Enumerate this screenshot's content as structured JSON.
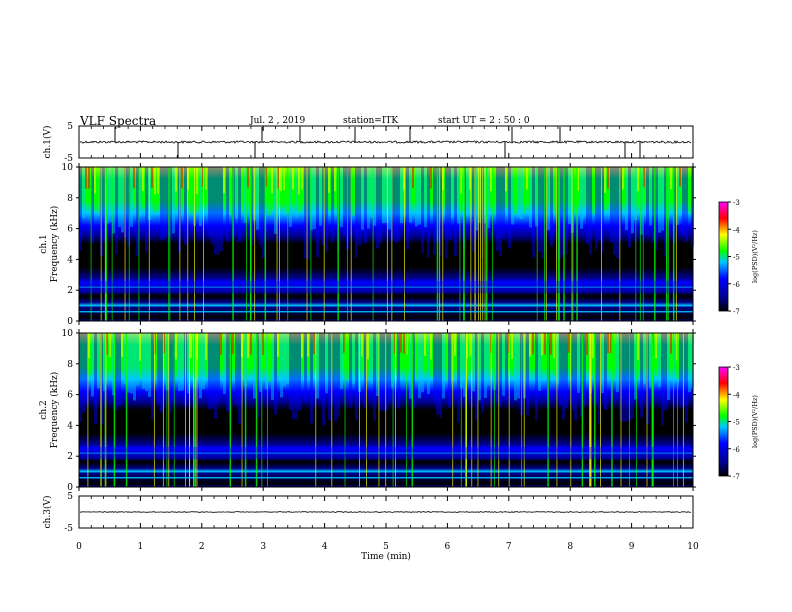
{
  "header": {
    "title": "VLF Spectra",
    "date": "Jul. 2 , 2019",
    "station": "station=ITK",
    "start": "start UT = 2 : 50 : 0"
  },
  "colors": {
    "black": "#000000",
    "navy": "#00008b",
    "blue": "#0000ff",
    "cyan": "#00c8ff",
    "green": "#00ff00",
    "yellow": "#ffff00",
    "red": "#ff0000",
    "magenta": "#ff00ff"
  },
  "chart_data": [
    {
      "type": "line",
      "panel": "ch1-waveform",
      "ylabel": "ch.1(V)",
      "ylim": [
        -5,
        5
      ],
      "yticks": [
        "5",
        "-5"
      ],
      "xlim": [
        0,
        10
      ],
      "series": [
        {
          "values_description_level": 0
        }
      ]
    },
    {
      "type": "heatmap",
      "panel": "ch1-spectrogram",
      "ylabel": "ch.1 Frequency (kHz)",
      "ylim": [
        0,
        10
      ],
      "yticks": [
        "0",
        "2",
        "4",
        "6",
        "8",
        "10"
      ],
      "xlim": [
        0,
        10
      ],
      "colorbar": {
        "label": "log(PSD)(V²/Hz)",
        "range": [
          -7,
          -3
        ],
        "ticks": [
          "-3",
          "-4",
          "-5",
          "-6",
          "-7"
        ]
      }
    },
    {
      "type": "heatmap",
      "panel": "ch2-spectrogram",
      "ylabel": "ch.2 Frequency (kHz)",
      "ylim": [
        0,
        10
      ],
      "yticks": [
        "0",
        "2",
        "4",
        "6",
        "8",
        "10"
      ],
      "xlim": [
        0,
        10
      ],
      "colorbar": {
        "label": "log(PSD)(V²/Hz)",
        "range": [
          -7,
          -3
        ],
        "ticks": [
          "-3",
          "-4",
          "-5",
          "-6",
          "-7"
        ]
      }
    },
    {
      "type": "line",
      "panel": "ch3-waveform",
      "ylabel": "ch.3(V)",
      "ylim": [
        -5,
        5
      ],
      "yticks": [
        "5",
        "-5"
      ],
      "xlim": [
        0,
        10
      ],
      "series": [
        {
          "values_description_level": 0
        }
      ]
    }
  ],
  "xaxis": {
    "label": "Time (min)",
    "ticks": [
      "0",
      "1",
      "2",
      "3",
      "4",
      "5",
      "6",
      "7",
      "8",
      "9",
      "10"
    ]
  }
}
